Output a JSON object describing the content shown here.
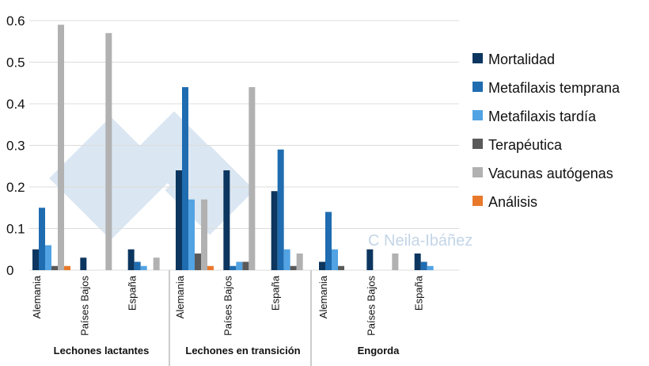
{
  "chart_data": {
    "type": "bar",
    "ylim": [
      0,
      0.6
    ],
    "yticks": [
      "0",
      "0.1",
      "0.2",
      "0.3",
      "0.4",
      "0.5",
      "0.6"
    ],
    "grid": true,
    "legend_position": "right",
    "groups": [
      "Lechones lactantes",
      "Lechones en transición",
      "Engorda"
    ],
    "categories": [
      "Alemania",
      "Países Bajos",
      "España",
      "Alemania",
      "Países Bajos",
      "España",
      "Alemania",
      "Países Bajos",
      "España"
    ],
    "series": [
      {
        "name": "Mortalidad",
        "color": "#0c365f",
        "values": [
          0.05,
          0.03,
          0.05,
          0.24,
          0.24,
          0.19,
          0.02,
          0.05,
          0.04
        ]
      },
      {
        "name": "Metafilaxis temprana",
        "color": "#1f6cb0",
        "values": [
          0.15,
          0,
          0.02,
          0.44,
          0.01,
          0.29,
          0.14,
          0,
          0.02
        ]
      },
      {
        "name": "Metafilaxis tardía",
        "color": "#52a3e3",
        "values": [
          0.06,
          0,
          0.01,
          0.17,
          0.02,
          0.05,
          0.05,
          0,
          0.01
        ]
      },
      {
        "name": "Terapéutica",
        "color": "#5a5a5a",
        "values": [
          0.01,
          0,
          0,
          0.04,
          0.02,
          0.01,
          0.01,
          0,
          0
        ]
      },
      {
        "name": "Vacunas autógenas",
        "color": "#b1b1b1",
        "values": [
          0.59,
          0.57,
          0.03,
          0.17,
          0.44,
          0.04,
          0,
          0.04,
          0
        ]
      },
      {
        "name": "Análisis",
        "color": "#e8792b",
        "values": [
          0.01,
          0,
          0,
          0.01,
          0,
          0,
          0,
          0,
          0
        ]
      }
    ]
  },
  "watermark": "C Neila-Ibáñez"
}
